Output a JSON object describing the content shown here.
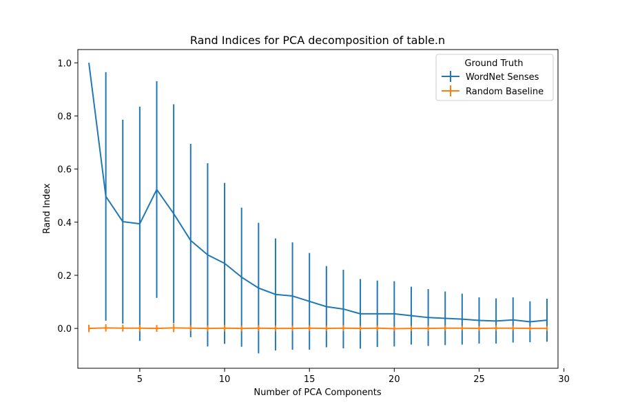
{
  "chart_data": {
    "type": "line",
    "title": "Rand Indices for PCA decomposition of table.n",
    "xlabel": "Number of PCA Components",
    "ylabel": "Rand Index",
    "xlim": [
      1.35,
      29.65
    ],
    "ylim": [
      -0.15,
      1.05
    ],
    "xticks": [
      5,
      10,
      15,
      20,
      25,
      30
    ],
    "yticks": [
      0.0,
      0.2,
      0.4,
      0.6,
      0.8,
      1.0
    ],
    "xtick_labels": [
      "5",
      "10",
      "15",
      "20",
      "25",
      "30"
    ],
    "ytick_labels": [
      "0.0",
      "0.2",
      "0.4",
      "0.6",
      "0.8",
      "1.0"
    ],
    "grid": false,
    "legend": {
      "title": "Ground Truth",
      "position": "top-right"
    },
    "series": [
      {
        "name": "WordNet Senses",
        "color": "#1f77b4",
        "x": [
          2,
          3,
          4,
          5,
          6,
          7,
          8,
          9,
          10,
          11,
          12,
          13,
          14,
          15,
          16,
          17,
          18,
          19,
          20,
          21,
          22,
          23,
          24,
          25,
          26,
          27,
          28,
          29
        ],
        "y": [
          1.0,
          0.497,
          0.402,
          0.394,
          0.523,
          0.432,
          0.331,
          0.277,
          0.245,
          0.193,
          0.152,
          0.128,
          0.122,
          0.102,
          0.082,
          0.073,
          0.055,
          0.055,
          0.055,
          0.048,
          0.041,
          0.038,
          0.035,
          0.03,
          0.028,
          0.032,
          0.025,
          0.031
        ],
        "yerr": [
          0.0,
          0.468,
          0.384,
          0.441,
          0.408,
          0.412,
          0.364,
          0.345,
          0.303,
          0.262,
          0.246,
          0.211,
          0.202,
          0.182,
          0.153,
          0.148,
          0.131,
          0.125,
          0.123,
          0.109,
          0.107,
          0.101,
          0.096,
          0.087,
          0.085,
          0.085,
          0.077,
          0.081
        ]
      },
      {
        "name": "Random Baseline",
        "color": "#ff7f0e",
        "x": [
          2,
          3,
          4,
          5,
          6,
          7,
          8,
          9,
          10,
          11,
          12,
          13,
          14,
          15,
          16,
          17,
          18,
          19,
          20,
          21,
          22,
          23,
          24,
          25,
          26,
          27,
          28,
          29
        ],
        "y": [
          0.0,
          0.002,
          0.001,
          0.001,
          0.0,
          0.002,
          0.001,
          0.0,
          0.001,
          0.0,
          0.001,
          0.0,
          0.0,
          0.001,
          0.0,
          0.001,
          0.0,
          0.001,
          -0.001,
          0.0,
          0.0,
          0.001,
          0.001,
          0.0,
          0.001,
          0.001,
          0.0,
          0.0
        ],
        "yerr": [
          0.014,
          0.014,
          0.013,
          0.012,
          0.013,
          0.016,
          0.011,
          0.011,
          0.012,
          0.011,
          0.011,
          0.011,
          0.01,
          0.011,
          0.01,
          0.011,
          0.01,
          0.01,
          0.009,
          0.01,
          0.01,
          0.01,
          0.009,
          0.009,
          0.01,
          0.009,
          0.009,
          0.009
        ]
      }
    ]
  }
}
